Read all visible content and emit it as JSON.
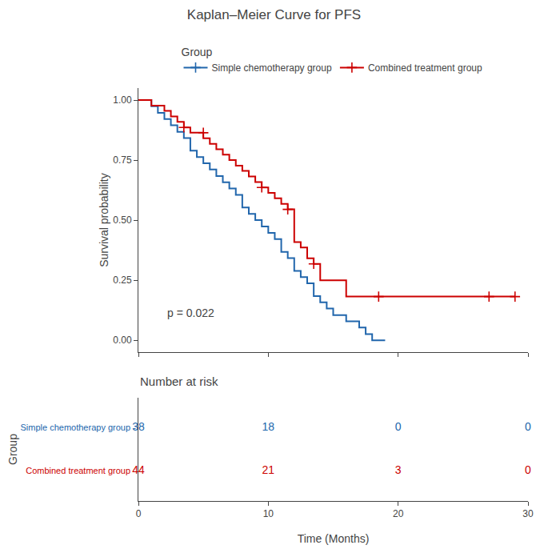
{
  "chart_data": [
    {
      "type": "line",
      "title": "Kaplan–Meier Curve for PFS",
      "ylabel": "Survival probability",
      "legend_title": "Group",
      "xlim": [
        0,
        30
      ],
      "xticks": [
        0,
        10,
        20,
        30
      ],
      "ylim": [
        -0.05,
        1.05
      ],
      "yticks": [
        {
          "value": 0,
          "label": "0.00"
        },
        0.25,
        {
          "value": 0.5,
          "label": "0.50"
        },
        0.75,
        {
          "value": 1,
          "label": "1.00"
        }
      ],
      "tick_labels": "y",
      "grid": false,
      "legend": "top",
      "line_style": "step",
      "marker": "+",
      "annotations": [
        {
          "text": "p = 0.022"
        }
      ],
      "series": [
        {
          "name": "Simple chemotherapy group",
          "color": "#2166ac",
          "x": [
            0,
            1.0,
            1.5,
            2.0,
            2.5,
            3.0,
            3.5,
            4.0,
            4.5,
            5.0,
            5.5,
            6.0,
            6.5,
            7.0,
            7.5,
            8.0,
            8.5,
            9.0,
            9.5,
            10.0,
            10.5,
            11.0,
            11.5,
            12.0,
            12.5,
            13.0,
            13.5,
            14.0,
            14.5,
            15.0,
            16.0,
            17.0,
            17.5,
            18.0,
            19.0
          ],
          "values": [
            1.0,
            0.974,
            0.947,
            0.921,
            0.895,
            0.868,
            0.842,
            0.789,
            0.763,
            0.737,
            0.711,
            0.684,
            0.658,
            0.632,
            0.605,
            0.553,
            0.526,
            0.5,
            0.474,
            0.447,
            0.421,
            0.368,
            0.342,
            0.289,
            0.263,
            0.237,
            0.184,
            0.158,
            0.132,
            0.105,
            0.079,
            0.053,
            0.026,
            0.0,
            0.0
          ]
        },
        {
          "name": "Combined treatment group",
          "color": "#cc0000",
          "x": [
            0,
            1.0,
            2.0,
            2.5,
            3.0,
            3.5,
            4.0,
            5.0,
            5.5,
            6.0,
            6.5,
            7.0,
            7.5,
            8.0,
            8.5,
            9.0,
            9.5,
            10.0,
            10.5,
            11.0,
            11.5,
            12.0,
            12.5,
            13.0,
            13.5,
            14.0,
            16.0,
            18.0,
            29.0
          ],
          "values": [
            1.0,
            0.977,
            0.955,
            0.932,
            0.909,
            0.886,
            0.864,
            0.841,
            0.818,
            0.795,
            0.773,
            0.75,
            0.727,
            0.705,
            0.682,
            0.659,
            0.636,
            0.614,
            0.591,
            0.568,
            0.545,
            0.409,
            0.386,
            0.341,
            0.318,
            0.25,
            0.182,
            0.182,
            0.182
          ],
          "censors": {
            "x": [
              3.5,
              5.0,
              9.5,
              11.5,
              13.5,
              18.5,
              27.0,
              29.0
            ],
            "values": [
              0.886,
              0.864,
              0.636,
              0.545,
              0.318,
              0.182,
              0.182,
              0.182
            ]
          }
        }
      ]
    },
    {
      "type": "table",
      "title": "Number at risk",
      "xlabel": "Time (Months)",
      "ylabel": "Group",
      "xlim": [
        0,
        30
      ],
      "xticks": [
        0,
        10,
        20,
        30
      ],
      "x": [
        0,
        10,
        20,
        30
      ],
      "grid": false,
      "data_labels": true,
      "series": [
        {
          "name": "Simple chemotherapy group -",
          "color": "#2166ac",
          "values": [
            38,
            18,
            0,
            0
          ]
        },
        {
          "name": "Combined treatment group -",
          "color": "#cc0000",
          "values": [
            44,
            21,
            3,
            0
          ]
        }
      ]
    }
  ]
}
